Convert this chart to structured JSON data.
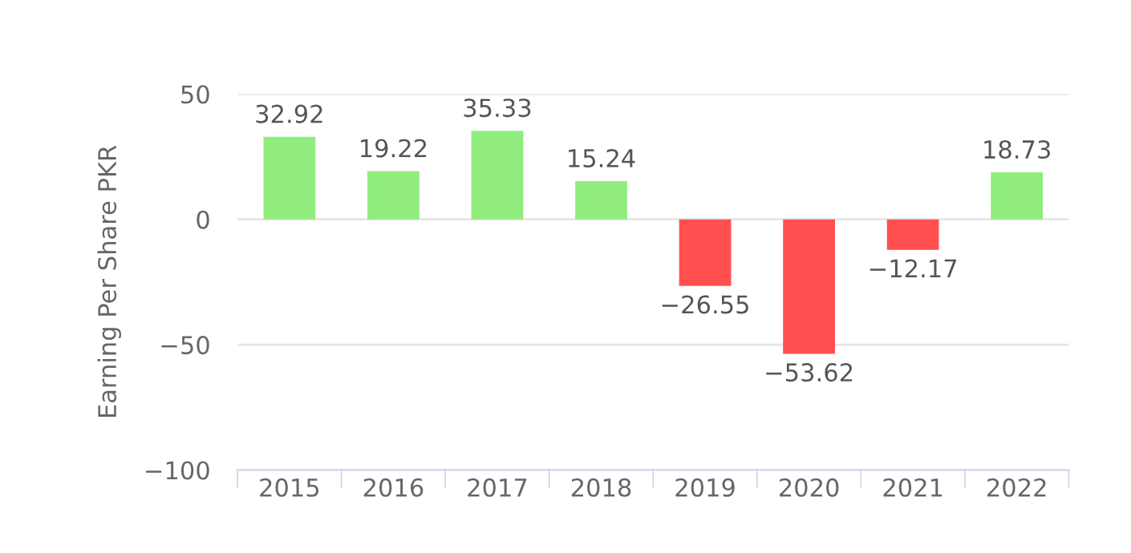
{
  "chart_data": {
    "type": "bar",
    "ylabel": "Earning Per Share PKR",
    "categories": [
      "2015",
      "2016",
      "2017",
      "2018",
      "2019",
      "2020",
      "2021",
      "2022"
    ],
    "values": [
      32.92,
      19.22,
      35.33,
      15.24,
      -26.55,
      -53.62,
      -12.17,
      18.73
    ],
    "colors": [
      "#90ed7d",
      "#90ed7d",
      "#90ed7d",
      "#90ed7d",
      "#ff4f4f",
      "#ff4f4f",
      "#ff4f4f",
      "#90ed7d"
    ],
    "ylim": [
      -100,
      50
    ],
    "yticks": [
      -100,
      -50,
      0,
      50
    ],
    "grid": "y",
    "data_labels": true
  }
}
